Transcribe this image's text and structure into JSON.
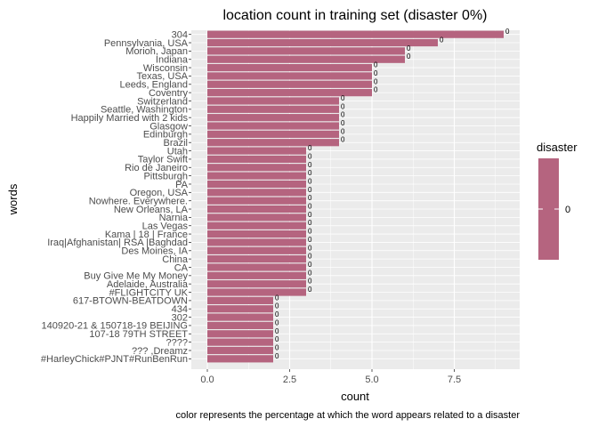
{
  "chart_data": {
    "type": "bar",
    "orientation": "horizontal",
    "title": "location count in training set (disaster 0%)",
    "xlabel": "count",
    "ylabel": "words",
    "caption": "color represents the percentage at which the word appears related to a disaster",
    "xlim": [
      0,
      9.4
    ],
    "xticks": [
      "0.0",
      "2.5",
      "5.0",
      "7.5"
    ],
    "xtick_values": [
      0,
      2.5,
      5,
      7.5
    ],
    "grid": true,
    "bar_color": "#b5647f",
    "panel_color": "#ebebeb",
    "legend": {
      "title": "disaster",
      "position": "right",
      "labels": [
        "0"
      ]
    },
    "categories": [
      "304",
      "Pennsylvania, USA",
      "Morioh, Japan",
      "Indiana",
      "Wisconsin",
      "Texas, USA",
      "Leeds, England",
      "Coventry",
      "Switzerland",
      "Seattle, Washington",
      "Happily Married with 2 kids",
      "Glasgow",
      "Edinburgh",
      "Brazil",
      "Utah",
      "Taylor Swift",
      "Rio de Janeiro",
      "Pittsburgh",
      "PA",
      "Oregon, USA",
      "Nowhere. Everywhere.",
      "New Orleans, LA",
      "Narnia",
      "Las Vegas",
      "Kama | 18 | France",
      "Iraq|Afghanistan| RSA |Baghdad",
      "Des Moines, IA",
      "China",
      "CA",
      "Buy Give Me My Money",
      "Adelaide, Australia",
      "#FLIGHTCITY UK",
      "617-BTOWN-BEATDOWN",
      "434",
      "302",
      "140920-21 & 150718-19 BEIJING",
      "107-18 79TH STREET",
      "????",
      "??? ,Dreamz",
      "#HarleyChick#PJNT#RunBenRun"
    ],
    "values": [
      9,
      7,
      6,
      6,
      5,
      5,
      5,
      5,
      4,
      4,
      4,
      4,
      4,
      4,
      3,
      3,
      3,
      3,
      3,
      3,
      3,
      3,
      3,
      3,
      3,
      3,
      3,
      3,
      3,
      3,
      3,
      3,
      2,
      2,
      2,
      2,
      2,
      2,
      2,
      2
    ],
    "data_labels": [
      "0",
      "0",
      "0",
      "0",
      "0",
      "0",
      "0",
      "0",
      "0",
      "0",
      "0",
      "0",
      "0",
      "0",
      "0",
      "0",
      "0",
      "0",
      "0",
      "0",
      "0",
      "0",
      "0",
      "0",
      "0",
      "0",
      "0",
      "0",
      "0",
      "0",
      "0",
      "0",
      "0",
      "0",
      "0",
      "0",
      "0",
      "0",
      "0",
      "0"
    ]
  }
}
